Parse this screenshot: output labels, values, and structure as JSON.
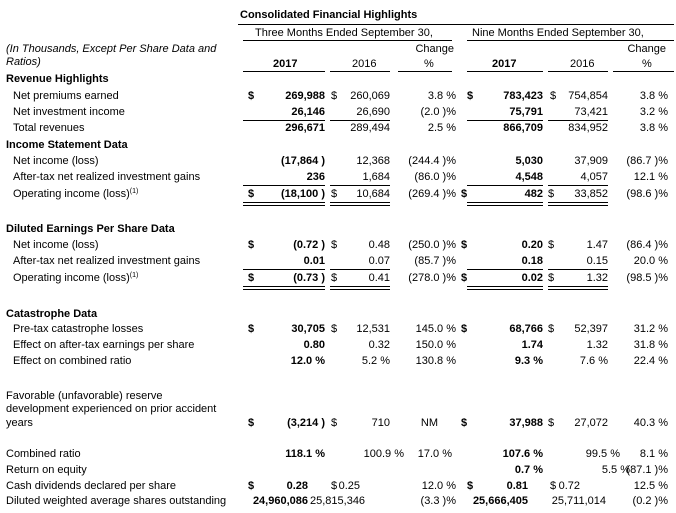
{
  "title": "Consolidated Financial Highlights",
  "header": {
    "qtr_label": "Three Months Ended September 30,",
    "nine_label": "Nine Months Ended September 30,",
    "units_line1": "(In Thousands, Except Per Share Data and",
    "units_line2": "Ratios)",
    "y2017": "2017",
    "y2016": "2016",
    "change_word": "Change",
    "pct": "%"
  },
  "sections": {
    "revenue": "Revenue Highlights",
    "income": "Income Statement Data",
    "eps": "Diluted Earnings Per Share Data",
    "cat": "Catastrophe Data"
  },
  "dollar": "$",
  "superscript": "(1)",
  "rows": [
    {
      "label": "Net premiums earned",
      "q17d": "$",
      "q17": "269,988",
      "q16d": "$",
      "q16": "260,069",
      "qch": "3.8 %",
      "n17d": "$",
      "n17": "783,423",
      "n16d": "$",
      "n16": "754,854",
      "nch": "3.8 %"
    },
    {
      "label": "Net investment income",
      "q17": "26,146",
      "q16": "26,690",
      "qch": "(2.0 )%",
      "n17": "75,791",
      "n16": "73,421",
      "nch": "3.2 %"
    },
    {
      "label": "Total revenues",
      "q17": "296,671",
      "q16": "289,494",
      "qch": "2.5 %",
      "n17": "866,709",
      "n16": "834,952",
      "nch": "3.8 %"
    },
    {
      "label": "Net income (loss)",
      "q17": "(17,864 )",
      "q16": "12,368",
      "qch": "(244.4 )%",
      "n17": "5,030",
      "n16": "37,909",
      "nch": "(86.7 )%"
    },
    {
      "label": "After-tax net realized investment gains",
      "q17": "236",
      "q16": "1,684",
      "qch": "(86.0 )%",
      "n17": "4,548",
      "n16": "4,057",
      "nch": "12.1 %"
    },
    {
      "label": "Operating income (loss)",
      "q17d": "$",
      "q17": "(18,100 )",
      "q16d": "$",
      "q16": "10,684",
      "qch": "(269.4 )%",
      "n17d": "$",
      "n17": "482",
      "n16d": "$",
      "n16": "33,852",
      "nch": "(98.6 )%"
    },
    {
      "label": "Net income (loss)",
      "q17d": "$",
      "q17": "(0.72 )",
      "q16d": "$",
      "q16": "0.48",
      "qch": "(250.0 )%",
      "n17d": "$",
      "n17": "0.20",
      "n16d": "$",
      "n16": "1.47",
      "nch": "(86.4 )%"
    },
    {
      "label": "After-tax net realized investment gains",
      "q17": "0.01",
      "q16": "0.07",
      "qch": "(85.7 )%",
      "n17": "0.18",
      "n16": "0.15",
      "nch": "20.0 %"
    },
    {
      "label": "Operating income (loss)",
      "q17d": "$",
      "q17": "(0.73 )",
      "q16d": "$",
      "q16": "0.41",
      "qch": "(278.0 )%",
      "n17d": "$",
      "n17": "0.02",
      "n16d": "$",
      "n16": "1.32",
      "nch": "(98.5 )%"
    },
    {
      "label": "Pre-tax catastrophe losses",
      "q17d": "$",
      "q17": "30,705",
      "q16d": "$",
      "q16": "12,531",
      "qch": "145.0 %",
      "n17d": "$",
      "n17": "68,766",
      "n16d": "$",
      "n16": "52,397",
      "nch": "31.2 %"
    },
    {
      "label": "Effect on after-tax earnings per share",
      "q17": "0.80",
      "q16": "0.32",
      "qch": "150.0 %",
      "n17": "1.74",
      "n16": "1.32",
      "nch": "31.8 %"
    },
    {
      "label": "Effect on combined ratio",
      "q17": "12.0 %",
      "q16": "5.2 %",
      "qch": "130.8 %",
      "n17": "9.3 %",
      "n16": "7.6 %",
      "nch": "22.4 %"
    },
    {
      "label1": "Favorable (unfavorable) reserve",
      "label2": "development experienced on prior accident",
      "label3": "years",
      "q17d": "$",
      "q17": "(3,214 )",
      "q16d": "$",
      "q16": "710",
      "qch": "NM",
      "n17d": "$",
      "n17": "37,988",
      "n16d": "$",
      "n16": "27,072",
      "nch": "40.3 %"
    },
    {
      "label": "Combined ratio",
      "q17": "118.1 %",
      "q16": "100.9 %",
      "qch": "17.0 %",
      "n17": "107.6 %",
      "n16": "99.5 %",
      "nch": "8.1 %"
    },
    {
      "label": "Return on equity",
      "n17": "0.7 %",
      "n16": "5.5 %",
      "nch": "(87.1 )%"
    },
    {
      "label": "Cash dividends declared per share",
      "q17d": "$",
      "q17": "0.28",
      "q16d": "$",
      "q16": "0.25",
      "qch": "12.0 %",
      "n17d": "$",
      "n17": "0.81",
      "n16d": "$",
      "n16": "0.72",
      "nch": "12.5 %"
    },
    {
      "label": "Diluted weighted average shares outstanding",
      "q17": "24,960,086",
      "q16": "25,815,346",
      "qch": "(3.3 )%",
      "n17": "25,666,405",
      "n16": "25,711,014",
      "nch": "(0.2 )%"
    }
  ]
}
